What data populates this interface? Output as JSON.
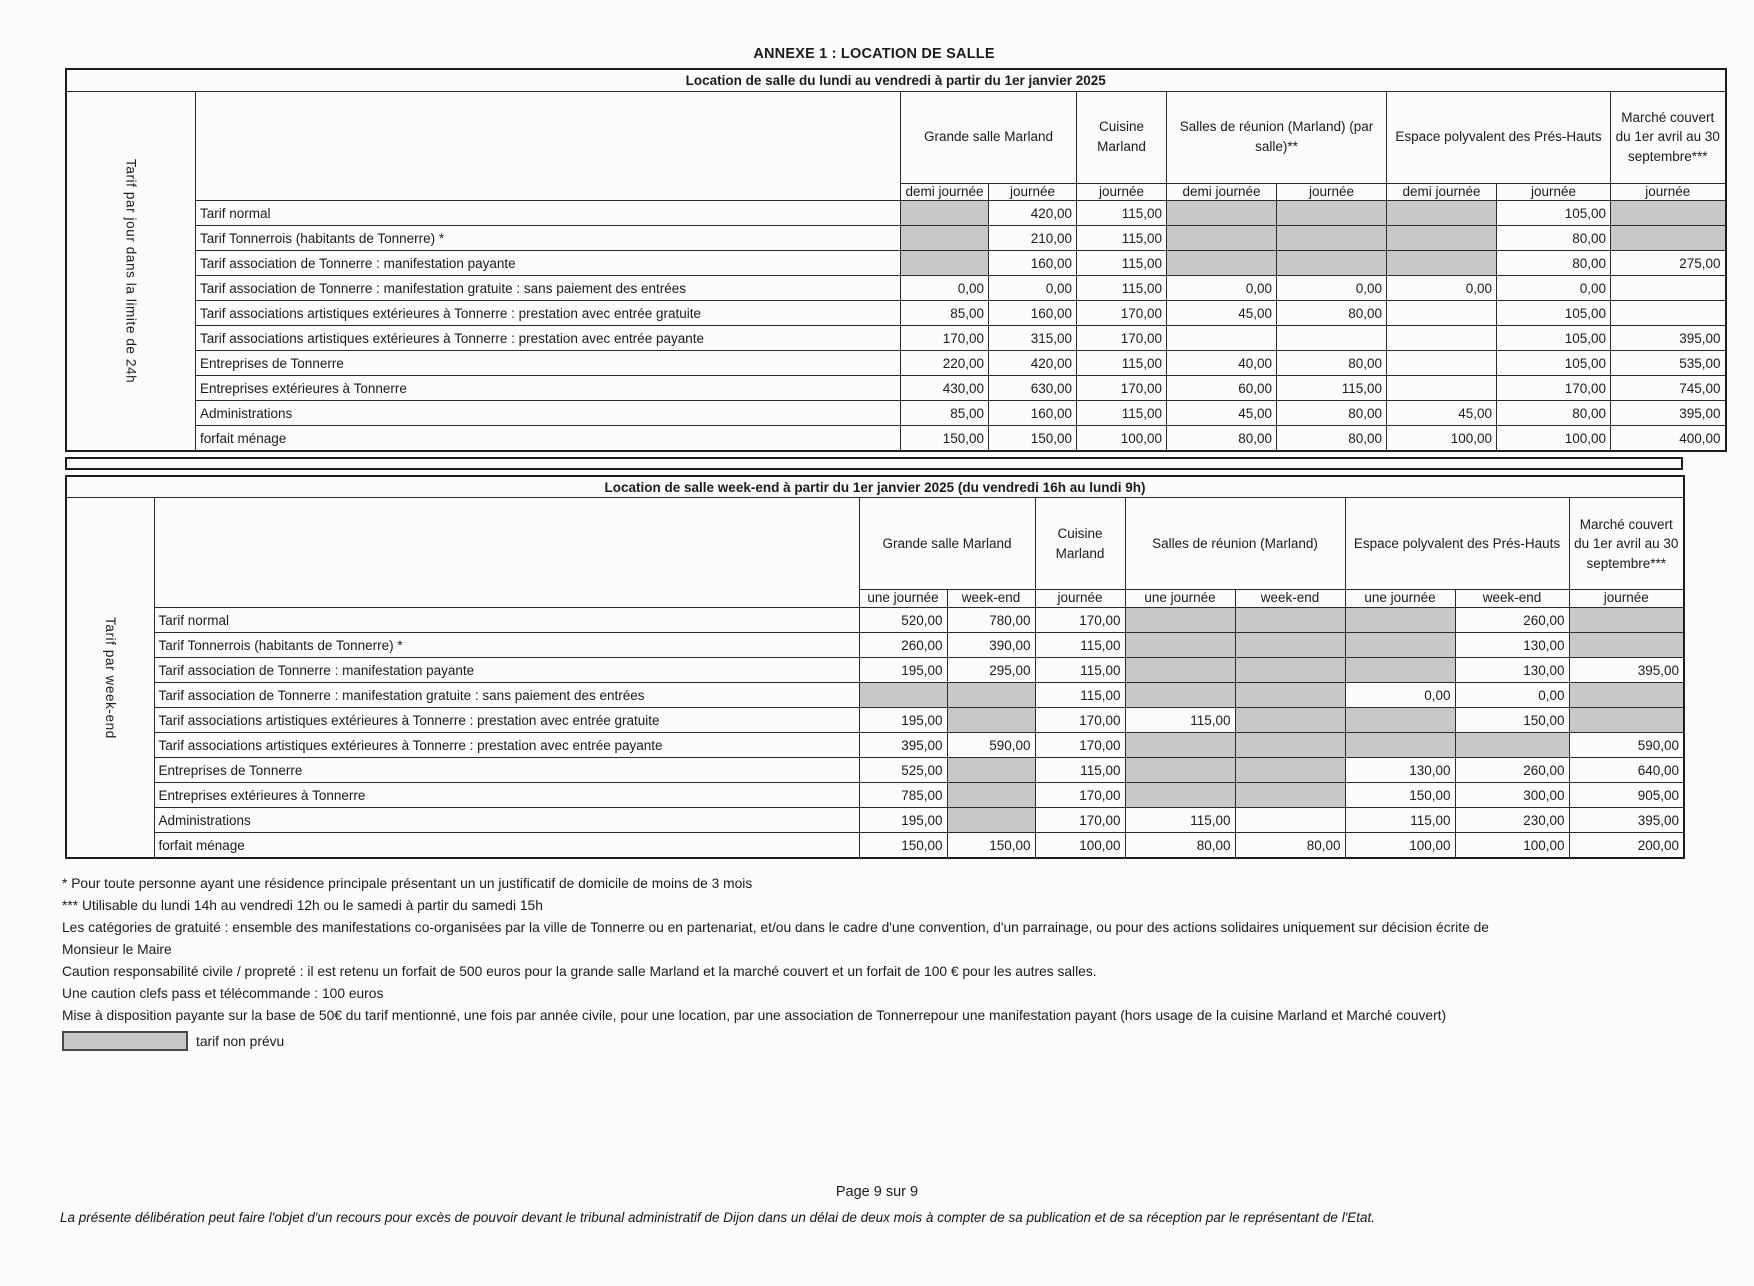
{
  "page": {
    "title": "ANNEXE 1 : LOCATION DE SALLE",
    "page_number": "Page 9 sur 9",
    "legal_footer": "La présente délibération peut faire l'objet d'un recours pour excès de pouvoir devant le tribunal administratif de Dijon dans un délai de deux mois à compter de sa publication et de sa réception par le représentant de l'Etat."
  },
  "colors": {
    "not_available_cell": "#c8c8c8",
    "border": "#1c1c1c"
  },
  "tables": [
    {
      "title": "Location de salle du lundi au vendredi à partir du 1er janvier 2025",
      "side_label": "Tarif par jour dans la limite de 24h",
      "column_groups": [
        {
          "label": "Grande salle Marland",
          "span": 2
        },
        {
          "label": "Cuisine Marland",
          "span": 1
        },
        {
          "label": "Salles de réunion (Marland) (par salle)**",
          "span": 2
        },
        {
          "label": "Espace polyvalent des Prés-Hauts",
          "span": 2
        },
        {
          "label": "Marché couvert du 1er avril au 30 septembre***",
          "span": 1
        }
      ],
      "sub_headers": [
        "demi journée",
        "journée",
        "journée",
        "demi journée",
        "journée",
        "demi journée",
        "journée",
        "journée"
      ],
      "rows": [
        {
          "label": "Tarif normal",
          "values": [
            null,
            "420,00",
            "115,00",
            null,
            null,
            null,
            "105,00",
            null
          ]
        },
        {
          "label": "Tarif Tonnerrois (habitants de Tonnerre) *",
          "values": [
            null,
            "210,00",
            "115,00",
            null,
            null,
            null,
            "80,00",
            null
          ]
        },
        {
          "label": "Tarif association de Tonnerre : manifestation payante",
          "values": [
            null,
            "160,00",
            "115,00",
            null,
            null,
            null,
            "80,00",
            "275,00"
          ]
        },
        {
          "label": "Tarif association de Tonnerre : manifestation gratuite : sans paiement des entrées",
          "values": [
            "0,00",
            "0,00",
            "115,00",
            "0,00",
            "0,00",
            "0,00",
            "0,00",
            ""
          ]
        },
        {
          "label": "Tarif associations artistiques extérieures à Tonnerre : prestation avec entrée gratuite",
          "values": [
            "85,00",
            "160,00",
            "170,00",
            "45,00",
            "80,00",
            "",
            "105,00",
            ""
          ]
        },
        {
          "label": "Tarif associations artistiques extérieures à Tonnerre : prestation avec entrée payante",
          "values": [
            "170,00",
            "315,00",
            "170,00",
            "",
            "",
            "",
            "105,00",
            "395,00"
          ]
        },
        {
          "label": "Entreprises de Tonnerre",
          "values": [
            "220,00",
            "420,00",
            "115,00",
            "40,00",
            "80,00",
            "",
            "105,00",
            "535,00"
          ]
        },
        {
          "label": "Entreprises extérieures à Tonnerre",
          "values": [
            "430,00",
            "630,00",
            "170,00",
            "60,00",
            "115,00",
            "",
            "170,00",
            "745,00"
          ]
        },
        {
          "label": "Administrations",
          "values": [
            "85,00",
            "160,00",
            "115,00",
            "45,00",
            "80,00",
            "45,00",
            "80,00",
            "395,00"
          ]
        },
        {
          "label": "forfait ménage",
          "values": [
            "150,00",
            "150,00",
            "100,00",
            "80,00",
            "80,00",
            "100,00",
            "100,00",
            "400,00"
          ]
        }
      ]
    },
    {
      "title": "Location de salle week-end à partir du 1er janvier 2025 (du vendredi 16h au lundi 9h)",
      "side_label": "Tarif par week-end",
      "column_groups": [
        {
          "label": "Grande salle Marland",
          "span": 2
        },
        {
          "label": "Cuisine Marland",
          "span": 1
        },
        {
          "label": "Salles de réunion (Marland)",
          "span": 2
        },
        {
          "label": "Espace polyvalent des Prés-Hauts",
          "span": 2
        },
        {
          "label": "Marché couvert du 1er avril au 30 septembre***",
          "span": 1
        }
      ],
      "sub_headers": [
        "une journée",
        "week-end",
        "journée",
        "une journée",
        "week-end",
        "une journée",
        "week-end",
        "journée"
      ],
      "rows": [
        {
          "label": "Tarif normal",
          "values": [
            "520,00",
            "780,00",
            "170,00",
            null,
            null,
            null,
            "260,00",
            null
          ]
        },
        {
          "label": "Tarif Tonnerrois (habitants de Tonnerre) *",
          "values": [
            "260,00",
            "390,00",
            "115,00",
            null,
            null,
            null,
            "130,00",
            null
          ]
        },
        {
          "label": "Tarif association de Tonnerre : manifestation payante",
          "values": [
            "195,00",
            "295,00",
            "115,00",
            null,
            null,
            null,
            "130,00",
            "395,00"
          ]
        },
        {
          "label": "Tarif association de Tonnerre : manifestation gratuite : sans paiement des entrées",
          "values": [
            null,
            null,
            "115,00",
            null,
            null,
            "0,00",
            "0,00",
            null
          ]
        },
        {
          "label": "Tarif associations artistiques extérieures à Tonnerre : prestation avec entrée gratuite",
          "values": [
            "195,00",
            null,
            "170,00",
            "115,00",
            null,
            null,
            "150,00",
            null
          ]
        },
        {
          "label": "Tarif associations artistiques extérieures à Tonnerre : prestation avec entrée payante",
          "values": [
            "395,00",
            "590,00",
            "170,00",
            null,
            null,
            null,
            null,
            "590,00"
          ]
        },
        {
          "label": "Entreprises de Tonnerre",
          "values": [
            "525,00",
            null,
            "115,00",
            null,
            null,
            "130,00",
            "260,00",
            "640,00"
          ]
        },
        {
          "label": "Entreprises extérieures à Tonnerre",
          "values": [
            "785,00",
            null,
            "170,00",
            null,
            null,
            "150,00",
            "300,00",
            "905,00"
          ]
        },
        {
          "label": "Administrations",
          "values": [
            "195,00",
            null,
            "170,00",
            "115,00",
            "",
            "115,00",
            "230,00",
            "395,00"
          ]
        },
        {
          "label": "forfait ménage",
          "values": [
            "150,00",
            "150,00",
            "100,00",
            "80,00",
            "80,00",
            "100,00",
            "100,00",
            "200,00"
          ]
        }
      ]
    }
  ],
  "notes": {
    "lines": [
      "* Pour toute personne ayant une résidence principale présentant un un justificatif de domicile de moins de 3 mois",
      "*** Utilisable du lundi 14h au vendredi 12h ou le samedi à partir du samedi 15h",
      "Les catégories de gratuité : ensemble des manifestations co-organisées par la ville de Tonnerre ou en partenariat, et/ou dans le cadre d'une convention, d'un parrainage, ou pour des actions solidaires uniquement sur décision écrite de Monsieur le Maire",
      "Caution responsabilité civile / propreté : il est retenu un forfait de 500 euros pour la grande salle Marland et la marché couvert et un forfait de 100 € pour les autres salles.",
      "Une caution clefs pass et télécommande : 100 euros",
      "Mise à disposition payante sur la base de 50€ du tarif mentionné, une fois par année civile, pour une location, par une association de Tonnerrepour une manifestation payant (hors usage de la cuisine Marland et Marché couvert)"
    ]
  },
  "legend": {
    "label": "tarif non prévu"
  }
}
